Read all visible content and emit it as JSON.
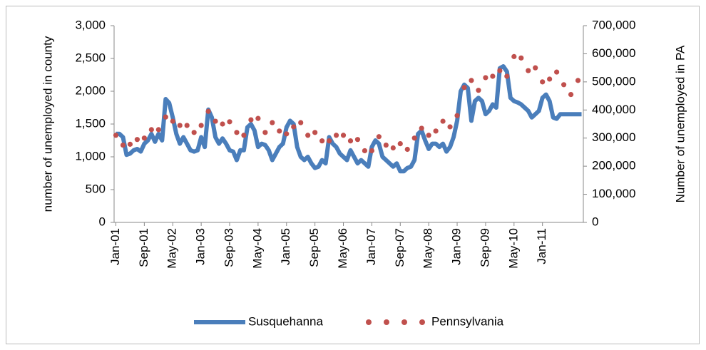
{
  "chart_data": {
    "type": "line",
    "ylabel": "number of unemployed in county",
    "y2label": "Number of unemployed in PA",
    "categories": [
      "Jan-01",
      null,
      null,
      null,
      null,
      null,
      null,
      null,
      "Sep-01",
      null,
      null,
      null,
      null,
      null,
      null,
      null,
      "May-02",
      null,
      null,
      null,
      null,
      null,
      null,
      null,
      "Jan-03",
      null,
      null,
      null,
      null,
      null,
      null,
      null,
      "Sep-03",
      null,
      null,
      null,
      null,
      null,
      null,
      null,
      "May-04",
      null,
      null,
      null,
      null,
      null,
      null,
      null,
      "Jan-05",
      null,
      null,
      null,
      null,
      null,
      null,
      null,
      "Sep-05",
      null,
      null,
      null,
      null,
      null,
      null,
      null,
      "May-06",
      null,
      null,
      null,
      null,
      null,
      null,
      null,
      "Jan-07",
      null,
      null,
      null,
      null,
      null,
      null,
      null,
      "Sep-07",
      null,
      null,
      null,
      null,
      null,
      null,
      null,
      "May-08",
      null,
      null,
      null,
      null,
      null,
      null,
      null,
      "Jan-09",
      null,
      null,
      null,
      null,
      null,
      null,
      null,
      "Sep-09",
      null,
      null,
      null,
      null,
      null,
      null,
      null,
      "May-10",
      null,
      null,
      null,
      null,
      null,
      null,
      null,
      "Jan-11",
      null,
      null,
      null,
      null,
      null,
      null,
      null,
      null,
      null,
      null,
      null
    ],
    "series": [
      {
        "name": "Susquehanna",
        "color": "#4a7ebb",
        "style": "line",
        "axis": "y",
        "values": [
          1350,
          1350,
          1300,
          1030,
          1050,
          1100,
          1120,
          1080,
          1200,
          1250,
          1350,
          1230,
          1350,
          1250,
          1880,
          1820,
          1600,
          1350,
          1200,
          1300,
          1200,
          1100,
          1080,
          1100,
          1300,
          1150,
          1720,
          1600,
          1300,
          1200,
          1280,
          1200,
          1100,
          1080,
          950,
          1100,
          1100,
          1450,
          1500,
          1400,
          1150,
          1200,
          1180,
          1100,
          950,
          1050,
          1150,
          1200,
          1450,
          1550,
          1500,
          1150,
          1000,
          950,
          1000,
          900,
          830,
          850,
          950,
          900,
          1300,
          1200,
          1150,
          1050,
          1000,
          950,
          1100,
          1000,
          900,
          950,
          900,
          850,
          1150,
          1250,
          1200,
          1000,
          950,
          900,
          850,
          900,
          780,
          780,
          830,
          850,
          950,
          1350,
          1400,
          1250,
          1120,
          1200,
          1200,
          1150,
          1200,
          1080,
          1150,
          1300,
          1550,
          2000,
          2100,
          2050,
          1550,
          1850,
          1900,
          1850,
          1650,
          1700,
          1800,
          1750,
          2350,
          2380,
          2300,
          1900,
          1850,
          1830,
          1800,
          1750,
          1700,
          1600,
          1650,
          1700,
          1900,
          1950,
          1850,
          1600,
          1580,
          1650,
          1650,
          1650,
          1650,
          1650,
          1650,
          1650
        ]
      },
      {
        "name": "Pennsylvania",
        "color": "#c0504d",
        "style": "dots",
        "axis": "y2",
        "values": [
          310000,
          null,
          275000,
          null,
          278000,
          null,
          295000,
          null,
          300000,
          null,
          330000,
          null,
          330000,
          null,
          375000,
          null,
          360000,
          null,
          345000,
          null,
          345000,
          null,
          320000,
          null,
          345000,
          null,
          395000,
          null,
          360000,
          null,
          350000,
          null,
          358000,
          null,
          320000,
          null,
          310000,
          null,
          365000,
          null,
          370000,
          null,
          320000,
          null,
          355000,
          null,
          325000,
          null,
          315000,
          null,
          340000,
          null,
          355000,
          null,
          310000,
          null,
          320000,
          null,
          290000,
          null,
          290000,
          null,
          310000,
          null,
          310000,
          null,
          290000,
          null,
          295000,
          null,
          255000,
          null,
          255000,
          null,
          305000,
          null,
          275000,
          null,
          265000,
          null,
          280000,
          null,
          260000,
          null,
          300000,
          null,
          335000,
          null,
          310000,
          null,
          325000,
          null,
          360000,
          null,
          340000,
          null,
          380000,
          null,
          480000,
          null,
          505000,
          null,
          470000,
          null,
          515000,
          null,
          520000,
          null,
          540000,
          null,
          520000,
          null,
          590000,
          null,
          585000,
          null,
          540000,
          null,
          550000,
          null,
          500000,
          null,
          510000,
          null,
          535000,
          null,
          490000,
          null,
          455000,
          null,
          505000,
          null
        ]
      }
    ],
    "ylim": [
      0,
      3000
    ],
    "yticks": [
      0,
      500,
      {
        "value": 1000,
        "label": "1,000"
      },
      {
        "value": 1500,
        "label": "1,500"
      },
      {
        "value": 2000,
        "label": "2,000"
      },
      {
        "value": 2500,
        "label": "2,500"
      },
      {
        "value": 3000,
        "label": "3,000"
      }
    ],
    "y2lim": [
      0,
      700000
    ],
    "y2ticks": [
      0,
      {
        "value": 100000,
        "label": "100,000"
      },
      {
        "value": 200000,
        "label": "200,000"
      },
      {
        "value": 300000,
        "label": "300,000"
      },
      {
        "value": 400000,
        "label": "400,000"
      },
      {
        "value": 500000,
        "label": "500,000"
      },
      {
        "value": 600000,
        "label": "600,000"
      },
      {
        "value": 700000,
        "label": "700,000"
      }
    ],
    "grid": false,
    "legend": "bottom"
  }
}
